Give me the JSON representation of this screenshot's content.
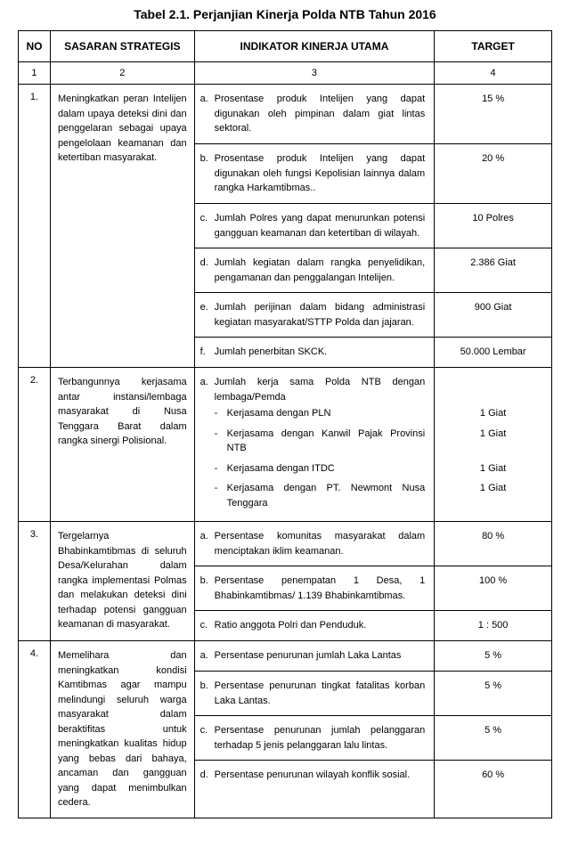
{
  "title": "Tabel 2.1. Perjanjian Kinerja Polda NTB Tahun 2016",
  "headers": {
    "no": "NO",
    "sasaran": "SASARAN STRATEGIS",
    "indikator": "INDIKATOR KINERJA UTAMA",
    "target": "TARGET"
  },
  "subheads": {
    "c1": "1",
    "c2": "2",
    "c3": "3",
    "c4": "4"
  },
  "rows": [
    {
      "no": "1.",
      "sasaran": "Meningkatkan peran Intelijen dalam upaya deteksi dini dan penggelaran sebagai upaya pengelolaan keamanan dan ketertiban masyarakat.",
      "items": [
        {
          "letter": "a.",
          "text": "Prosentase produk Intelijen yang dapat digunakan oleh pimpinan dalam giat lintas sektoral.",
          "target": "15 %"
        },
        {
          "letter": "b.",
          "text": "Prosentase produk Intelijen yang dapat digunakan oleh fungsi Kepolisian lainnya dalam rangka Harkamtibmas..",
          "target": "20 %"
        },
        {
          "letter": "c.",
          "text": "Jumlah Polres yang dapat menurunkan potensi gangguan keamanan dan ketertiban di wilayah.",
          "target": "10 Polres"
        },
        {
          "letter": "d.",
          "text": "Jumlah kegiatan dalam rangka penyelidikan, pengamanan dan penggalangan Intelijen.",
          "target": "2.386 Giat"
        },
        {
          "letter": "e.",
          "text": "Jumlah perijinan dalam bidang administrasi kegiatan masyarakat/STTP Polda dan jajaran.",
          "target": "900 Giat"
        },
        {
          "letter": "f.",
          "text": "Jumlah penerbitan SKCK.",
          "target": "50.000 Lembar"
        }
      ]
    },
    {
      "no": "2.",
      "sasaran": "Terbangunnya kerjasama antar instansi/lembaga masyarakat di Nusa Tenggara Barat dalam rangka sinergi Polisional.",
      "items": [
        {
          "letter": "a.",
          "text": "Jumlah kerja sama Polda NTB dengan lembaga/Pemda",
          "subs": [
            {
              "text": "Kerjasama dengan PLN",
              "target": "1 Giat"
            },
            {
              "text": "Kerjasama dengan Kanwil Pajak Provinsi NTB",
              "target": "1 Giat"
            },
            {
              "text": "Kerjasama dengan ITDC",
              "target": "1 Giat"
            },
            {
              "text": "Kerjasama dengan PT. Newmont Nusa Tenggara",
              "target": "1 Giat"
            }
          ]
        }
      ]
    },
    {
      "no": "3.",
      "sasaran": "Tergelarnya Bhabinkamtibmas di seluruh Desa/Kelurahan dalam rangka implementasi Polmas dan melakukan deteksi dini terhadap potensi gangguan keamanan di masyarakat.",
      "items": [
        {
          "letter": "a.",
          "text": "Persentase komunitas masyarakat dalam menciptakan iklim keamanan.",
          "target": "80 %"
        },
        {
          "letter": "b.",
          "text": "Persentase penempatan 1 Desa, 1 Bhabinkamtibmas/ 1.139 Bhabinkamtibmas.",
          "target": "100 %"
        },
        {
          "letter": "c.",
          "text": "Ratio anggota Polri dan Penduduk.",
          "target": "1 : 500"
        }
      ]
    },
    {
      "no": "4.",
      "sasaran": "Memelihara dan meningkatkan kondisi Kamtibmas agar mampu melindungi seluruh warga masyarakat dalam beraktifitas untuk meningkatkan kualitas hidup yang bebas dari bahaya, ancaman dan gangguan yang dapat menimbulkan cedera.",
      "items": [
        {
          "letter": "a.",
          "text": "Persentase penurunan jumlah Laka Lantas",
          "target": "5 %"
        },
        {
          "letter": "b.",
          "text": "Persentase penurunan tingkat fatalitas korban Laka Lantas.",
          "target": "5 %"
        },
        {
          "letter": "c.",
          "text": "Persentase penurunan jumlah pelanggaran terhadap 5 jenis pelanggaran lalu lintas.",
          "target": "5 %"
        },
        {
          "letter": "d.",
          "text": "Persentase penurunan wilayah konflik sosial.",
          "target": "60 %"
        }
      ]
    }
  ]
}
